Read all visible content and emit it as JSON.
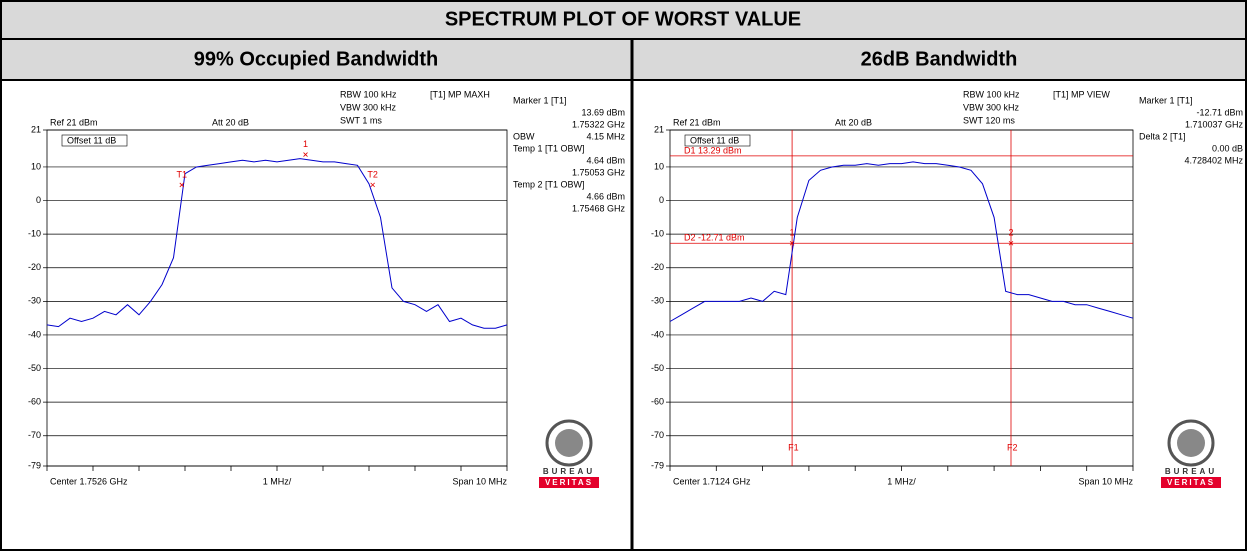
{
  "header": {
    "title": "SPECTRUM PLOT OF WORST VALUE"
  },
  "columns": [
    "99% Occupied Bandwidth",
    "26dB Bandwidth"
  ],
  "chart_data": [
    {
      "type": "line",
      "color": "#0000cc",
      "marker_color": "#e00000",
      "labels": {
        "ref": "Ref 21 dBm",
        "att": "Att 20 dB",
        "rbw": "RBW 100 kHz",
        "vbw": "VBW 300 kHz",
        "swt": "SWT 1 ms",
        "trace": "[T1] MP MAXH",
        "offset": "Offset 11 dB",
        "center": "Center 1.7526 GHz",
        "div": "1 MHz/",
        "span": "Span 10 MHz"
      },
      "readout": [
        {
          "label": "Marker 1 [T1]"
        },
        {
          "value": "13.69 dBm"
        },
        {
          "value": "1.75322 GHz"
        },
        {
          "label": "OBW",
          "value": "4.15 MHz"
        },
        {
          "label": "Temp 1 [T1 OBW]"
        },
        {
          "value": "4.64 dBm"
        },
        {
          "value": "1.75053 GHz"
        },
        {
          "label": "Temp 2 [T1 OBW]"
        },
        {
          "value": "4.66 dBm"
        },
        {
          "value": "1.75468 GHz"
        }
      ],
      "logo": [
        "BUREAU",
        "VERITAS"
      ],
      "xlim": [
        1747.6,
        1757.6
      ],
      "xticks": [
        1747.6,
        1748.6,
        1749.6,
        1750.6,
        1751.6,
        1752.6,
        1753.6,
        1754.6,
        1755.6,
        1756.6,
        1757.6
      ],
      "ylim": [
        -79,
        21
      ],
      "yticks": [
        21,
        10,
        0,
        -10,
        -20,
        -30,
        -40,
        -50,
        -60,
        -70,
        -79
      ],
      "x": [
        1747.6,
        1747.85,
        1748.1,
        1748.35,
        1748.6,
        1748.85,
        1749.1,
        1749.35,
        1749.6,
        1749.85,
        1750.1,
        1750.35,
        1750.6,
        1750.85,
        1751.1,
        1751.35,
        1751.6,
        1751.85,
        1752.1,
        1752.35,
        1752.6,
        1752.85,
        1753.1,
        1753.35,
        1753.6,
        1753.85,
        1754.1,
        1754.35,
        1754.6,
        1754.85,
        1755.1,
        1755.35,
        1755.6,
        1755.85,
        1756.1,
        1756.35,
        1756.6,
        1756.85,
        1757.1,
        1757.35,
        1757.6
      ],
      "values": [
        -37,
        -37.5,
        -35,
        -36,
        -35,
        -33,
        -34,
        -31,
        -34,
        -30,
        -25,
        -17,
        8,
        10,
        10.5,
        11,
        11.5,
        12,
        11.5,
        12,
        11.5,
        12,
        12.5,
        12,
        11.5,
        11.5,
        11,
        10.5,
        5,
        -5,
        -26,
        -30,
        -31,
        -33,
        -31,
        -36,
        -35,
        -37,
        -38,
        -38,
        -37
      ],
      "markers": [
        {
          "label": "1",
          "x": 1753.22,
          "y": 13.69
        },
        {
          "label": "T1",
          "x": 1750.53,
          "y": 4.64
        },
        {
          "label": "T2",
          "x": 1754.68,
          "y": 4.66
        }
      ]
    },
    {
      "type": "line",
      "color": "#0000cc",
      "marker_color": "#e00000",
      "labels": {
        "ref": "Ref 21 dBm",
        "att": "Att 20 dB",
        "rbw": "RBW 100 kHz",
        "vbw": "VBW 300 kHz",
        "swt": "SWT 120 ms",
        "trace": "[T1] MP VIEW",
        "offset": "Offset 11 dB",
        "center": "Center 1.7124 GHz",
        "div": "1 MHz/",
        "span": "Span 10 MHz"
      },
      "readout": [
        {
          "label": "Marker 1 [T1]"
        },
        {
          "value": "-12.71 dBm"
        },
        {
          "value": "1.710037 GHz"
        },
        {
          "label": "Delta 2 [T1]"
        },
        {
          "value": "0.00 dB"
        },
        {
          "value": "4.728402 MHz"
        }
      ],
      "logo": [
        "BUREAU",
        "VERITAS"
      ],
      "xlim": [
        1707.4,
        1717.4
      ],
      "xticks": [
        1707.4,
        1708.4,
        1709.4,
        1710.4,
        1711.4,
        1712.4,
        1713.4,
        1714.4,
        1715.4,
        1716.4,
        1717.4
      ],
      "ylim": [
        -79,
        21
      ],
      "yticks": [
        21,
        10,
        0,
        -10,
        -20,
        -30,
        -40,
        -50,
        -60,
        -70,
        -79
      ],
      "x": [
        1707.4,
        1707.65,
        1707.9,
        1708.15,
        1708.4,
        1708.65,
        1708.9,
        1709.15,
        1709.4,
        1709.65,
        1709.9,
        1710.15,
        1710.4,
        1710.65,
        1710.9,
        1711.15,
        1711.4,
        1711.65,
        1711.9,
        1712.15,
        1712.4,
        1712.65,
        1712.9,
        1713.15,
        1713.4,
        1713.65,
        1713.9,
        1714.15,
        1714.4,
        1714.65,
        1714.9,
        1715.15,
        1715.4,
        1715.65,
        1715.9,
        1716.15,
        1716.4,
        1716.65,
        1716.9,
        1717.15,
        1717.4
      ],
      "values": [
        -36,
        -34,
        -32,
        -30,
        -30,
        -30,
        -30,
        -29,
        -30,
        -27,
        -28,
        -5,
        6,
        9,
        10,
        10.5,
        10.5,
        11,
        10.5,
        11,
        11,
        11.5,
        11,
        11,
        10.5,
        10,
        9,
        5,
        -5,
        -27,
        -28,
        -28,
        -29,
        -30,
        -30,
        -31,
        -31,
        -32,
        -33,
        -34,
        -35
      ],
      "markers": [
        {
          "label": "1",
          "x": 1710.037,
          "y": -12.71
        },
        {
          "label": "2",
          "x": 1714.765,
          "y": -12.71
        }
      ],
      "hlines": [
        {
          "label": "D1 13.29 dBm",
          "y": 13.29
        },
        {
          "label": "D2 -12.71 dBm",
          "y": -12.71
        }
      ],
      "vlines": [
        {
          "label": "F1",
          "x": 1710.037
        },
        {
          "label": "F2",
          "x": 1714.765
        }
      ]
    }
  ]
}
